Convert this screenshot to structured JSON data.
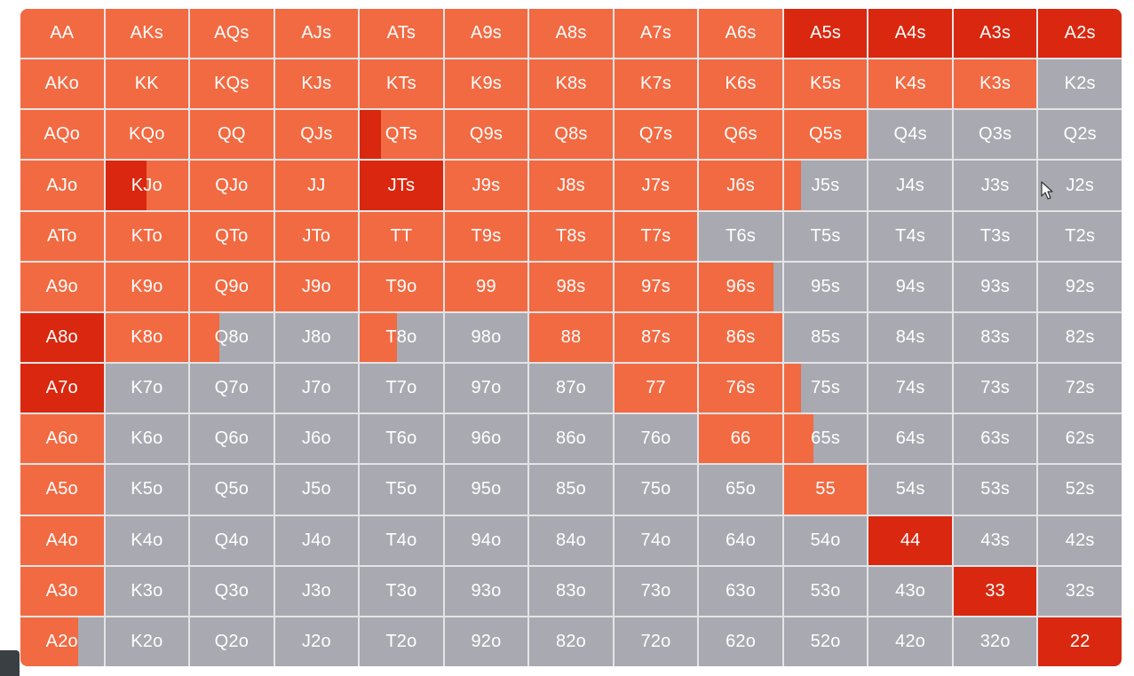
{
  "colors": {
    "fold": "#a9a9b1",
    "raise": "#f26a42",
    "mixed": "#d9280f"
  },
  "hands": [
    [
      "AA",
      "AKs",
      "AQs",
      "AJs",
      "ATs",
      "A9s",
      "A8s",
      "A7s",
      "A6s",
      "A5s",
      "A4s",
      "A3s",
      "A2s"
    ],
    [
      "AKo",
      "KK",
      "KQs",
      "KJs",
      "KTs",
      "K9s",
      "K8s",
      "K7s",
      "K6s",
      "K5s",
      "K4s",
      "K3s",
      "K2s"
    ],
    [
      "AQo",
      "KQo",
      "QQ",
      "QJs",
      "QTs",
      "Q9s",
      "Q8s",
      "Q7s",
      "Q6s",
      "Q5s",
      "Q4s",
      "Q3s",
      "Q2s"
    ],
    [
      "AJo",
      "KJo",
      "QJo",
      "JJ",
      "JTs",
      "J9s",
      "J8s",
      "J7s",
      "J6s",
      "J5s",
      "J4s",
      "J3s",
      "J2s"
    ],
    [
      "ATo",
      "KTo",
      "QTo",
      "JTo",
      "TT",
      "T9s",
      "T8s",
      "T7s",
      "T6s",
      "T5s",
      "T4s",
      "T3s",
      "T2s"
    ],
    [
      "A9o",
      "K9o",
      "Q9o",
      "J9o",
      "T9o",
      "99",
      "98s",
      "97s",
      "96s",
      "95s",
      "94s",
      "93s",
      "92s"
    ],
    [
      "A8o",
      "K8o",
      "Q8o",
      "J8o",
      "T8o",
      "98o",
      "88",
      "87s",
      "86s",
      "85s",
      "84s",
      "83s",
      "82s"
    ],
    [
      "A7o",
      "K7o",
      "Q7o",
      "J7o",
      "T7o",
      "97o",
      "87o",
      "77",
      "76s",
      "75s",
      "74s",
      "73s",
      "72s"
    ],
    [
      "A6o",
      "K6o",
      "Q6o",
      "J6o",
      "T6o",
      "96o",
      "86o",
      "76o",
      "66",
      "65s",
      "64s",
      "63s",
      "62s"
    ],
    [
      "A5o",
      "K5o",
      "Q5o",
      "J5o",
      "T5o",
      "95o",
      "85o",
      "75o",
      "65o",
      "55",
      "54s",
      "53s",
      "52s"
    ],
    [
      "A4o",
      "K4o",
      "Q4o",
      "J4o",
      "T4o",
      "94o",
      "84o",
      "74o",
      "64o",
      "54o",
      "44",
      "43s",
      "42s"
    ],
    [
      "A3o",
      "K3o",
      "Q3o",
      "J3o",
      "T3o",
      "93o",
      "83o",
      "73o",
      "63o",
      "53o",
      "43o",
      "33",
      "32s"
    ],
    [
      "A2o",
      "K2o",
      "Q2o",
      "J2o",
      "T2o",
      "92o",
      "82o",
      "72o",
      "62o",
      "52o",
      "42o",
      "32o",
      "22"
    ]
  ],
  "strategy": [
    [
      "raise",
      "raise",
      "raise",
      "raise",
      "raise",
      "raise",
      "raise",
      "raise",
      "raise",
      "mixed",
      "mixed",
      "mixed",
      "mixed"
    ],
    [
      "raise",
      "raise",
      "raise",
      "raise",
      "raise",
      "raise",
      "raise",
      "raise",
      "raise",
      "raise",
      "raise",
      "raise",
      "fold"
    ],
    [
      "raise",
      "raise",
      "raise",
      "raise",
      "raise",
      "raise",
      "raise",
      "raise",
      "raise",
      "raise",
      "fold",
      "fold",
      "fold"
    ],
    [
      "raise",
      "raise",
      "raise",
      "raise",
      "mixed",
      "raise",
      "raise",
      "raise",
      "raise",
      "raise",
      "fold",
      "fold",
      "fold"
    ],
    [
      "raise",
      "raise",
      "raise",
      "raise",
      "raise",
      "raise",
      "raise",
      "raise",
      "fold",
      "fold",
      "fold",
      "fold",
      "fold"
    ],
    [
      "raise",
      "raise",
      "raise",
      "raise",
      "raise",
      "raise",
      "raise",
      "raise",
      "raise",
      "fold",
      "fold",
      "fold",
      "fold"
    ],
    [
      "mixed",
      "raise",
      "raise",
      "fold",
      "raise",
      "fold",
      "raise",
      "raise",
      "raise",
      "fold",
      "fold",
      "fold",
      "fold"
    ],
    [
      "mixed",
      "fold",
      "fold",
      "fold",
      "fold",
      "fold",
      "fold",
      "raise",
      "raise",
      "raise",
      "fold",
      "fold",
      "fold"
    ],
    [
      "raise",
      "fold",
      "fold",
      "fold",
      "fold",
      "fold",
      "fold",
      "fold",
      "raise",
      "raise",
      "fold",
      "fold",
      "fold"
    ],
    [
      "raise",
      "fold",
      "fold",
      "fold",
      "fold",
      "fold",
      "fold",
      "fold",
      "fold",
      "raise",
      "fold",
      "fold",
      "fold"
    ],
    [
      "raise",
      "fold",
      "fold",
      "fold",
      "fold",
      "fold",
      "fold",
      "fold",
      "fold",
      "fold",
      "mixed",
      "fold",
      "fold"
    ],
    [
      "raise",
      "fold",
      "fold",
      "fold",
      "fold",
      "fold",
      "fold",
      "fold",
      "fold",
      "fold",
      "fold",
      "mixed",
      "fold"
    ],
    [
      "raise",
      "fold",
      "fold",
      "fold",
      "fold",
      "fold",
      "fold",
      "fold",
      "fold",
      "fold",
      "fold",
      "fold",
      "mixed"
    ]
  ],
  "frequency": [
    [
      1,
      1,
      1,
      1,
      1,
      1,
      1,
      1,
      1,
      1,
      1,
      1,
      1
    ],
    [
      1,
      1,
      1,
      1,
      1,
      1,
      1,
      1,
      1,
      1,
      1,
      1,
      0
    ],
    [
      1,
      1,
      1,
      1,
      1,
      1,
      1,
      1,
      1,
      1,
      0,
      0,
      0
    ],
    [
      1,
      1,
      1,
      1,
      1,
      1,
      1,
      1,
      1,
      0.2,
      0,
      0,
      0
    ],
    [
      1,
      1,
      1,
      1,
      1,
      1,
      1,
      1,
      0.03,
      0,
      0,
      0,
      0
    ],
    [
      1,
      1,
      1,
      1,
      1,
      1,
      1,
      1,
      0.9,
      0,
      0,
      0,
      0
    ],
    [
      1,
      1,
      0.35,
      0,
      0.45,
      0,
      1,
      1,
      1,
      0,
      0,
      0,
      0
    ],
    [
      1,
      0,
      0,
      0,
      0,
      0,
      0,
      1,
      1,
      0.2,
      0,
      0,
      0
    ],
    [
      1,
      0,
      0,
      0,
      0,
      0,
      0,
      0,
      1,
      0.35,
      0,
      0,
      0
    ],
    [
      1,
      0,
      0,
      0,
      0,
      0,
      0,
      0,
      0,
      1,
      0,
      0,
      0
    ],
    [
      1,
      0,
      0,
      0,
      0,
      0,
      0,
      0,
      0,
      0,
      1,
      0,
      0
    ],
    [
      1,
      0,
      0,
      0,
      0,
      0,
      0,
      0,
      0,
      0,
      0,
      1,
      0
    ],
    [
      0.7,
      0,
      0,
      0,
      0,
      0,
      0,
      0,
      0,
      0,
      0,
      0,
      1
    ]
  ],
  "highlight": [
    [
      null,
      null,
      null,
      null,
      null,
      null,
      null,
      null,
      null,
      null,
      null,
      null,
      null
    ],
    [
      null,
      null,
      null,
      null,
      null,
      null,
      null,
      null,
      null,
      null,
      null,
      null,
      null
    ],
    [
      null,
      null,
      null,
      null,
      {
        "color": "mixed",
        "frac": 0.25
      },
      null,
      null,
      null,
      null,
      null,
      null,
      null,
      null
    ],
    [
      null,
      {
        "color": "mixed",
        "frac": 0.5
      },
      null,
      null,
      null,
      null,
      null,
      null,
      null,
      null,
      null,
      null,
      null
    ],
    [
      null,
      null,
      null,
      null,
      null,
      null,
      null,
      null,
      null,
      null,
      null,
      null,
      null
    ],
    [
      null,
      null,
      null,
      null,
      null,
      null,
      null,
      null,
      null,
      null,
      null,
      null,
      null
    ],
    [
      {
        "color": "mixed",
        "frac": 0.85
      },
      null,
      null,
      null,
      null,
      null,
      null,
      null,
      null,
      null,
      null,
      null,
      null
    ],
    [
      null,
      null,
      null,
      null,
      null,
      null,
      null,
      null,
      null,
      null,
      null,
      null,
      null
    ],
    [
      null,
      null,
      null,
      null,
      null,
      null,
      null,
      null,
      null,
      null,
      null,
      null,
      null
    ],
    [
      null,
      null,
      null,
      null,
      null,
      null,
      null,
      null,
      null,
      null,
      null,
      null,
      null
    ],
    [
      null,
      null,
      null,
      null,
      null,
      null,
      null,
      null,
      null,
      null,
      null,
      null,
      null
    ],
    [
      null,
      null,
      null,
      null,
      null,
      null,
      null,
      null,
      null,
      null,
      null,
      null,
      null
    ],
    [
      null,
      null,
      null,
      null,
      null,
      null,
      null,
      null,
      null,
      null,
      null,
      null,
      null
    ]
  ]
}
